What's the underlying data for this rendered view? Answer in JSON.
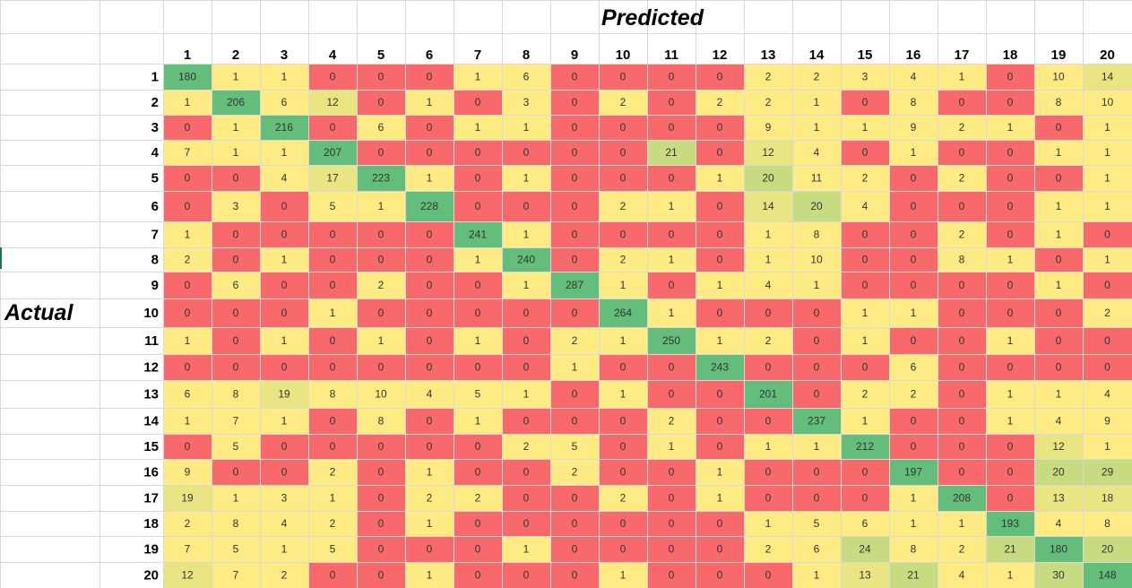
{
  "chart_data": {
    "type": "heatmap",
    "title": "",
    "xlabel": "Predicted",
    "ylabel": "Actual",
    "x_categories": [
      "1",
      "2",
      "3",
      "4",
      "5",
      "6",
      "7",
      "8",
      "9",
      "10",
      "11",
      "12",
      "13",
      "14",
      "15",
      "16",
      "17",
      "18",
      "19",
      "20"
    ],
    "y_categories": [
      "1",
      "2",
      "3",
      "4",
      "5",
      "6",
      "7",
      "8",
      "9",
      "10",
      "11",
      "12",
      "13",
      "14",
      "15",
      "16",
      "17",
      "18",
      "19",
      "20"
    ],
    "colors": {
      "zero": "#f8696b",
      "low": "#ffeb84",
      "mid": "#e9e583",
      "midhigh": "#c7dc81",
      "high": "#63be7b"
    },
    "values": [
      [
        180,
        1,
        1,
        0,
        0,
        0,
        1,
        6,
        0,
        0,
        0,
        0,
        2,
        2,
        3,
        4,
        1,
        0,
        10,
        14
      ],
      [
        1,
        206,
        6,
        12,
        0,
        1,
        0,
        3,
        0,
        2,
        0,
        2,
        2,
        1,
        0,
        8,
        0,
        0,
        8,
        10
      ],
      [
        0,
        1,
        216,
        0,
        6,
        0,
        1,
        1,
        0,
        0,
        0,
        0,
        9,
        1,
        1,
        9,
        2,
        1,
        0,
        1
      ],
      [
        7,
        1,
        1,
        207,
        0,
        0,
        0,
        0,
        0,
        0,
        21,
        0,
        12,
        4,
        0,
        1,
        0,
        0,
        1,
        1
      ],
      [
        0,
        0,
        4,
        17,
        223,
        1,
        0,
        1,
        0,
        0,
        0,
        1,
        20,
        11,
        2,
        0,
        2,
        0,
        0,
        1
      ],
      [
        0,
        3,
        0,
        5,
        1,
        228,
        0,
        0,
        0,
        2,
        1,
        0,
        14,
        20,
        4,
        0,
        0,
        0,
        1,
        1
      ],
      [
        1,
        0,
        0,
        0,
        0,
        0,
        241,
        1,
        0,
        0,
        0,
        0,
        1,
        8,
        0,
        0,
        2,
        0,
        1,
        0
      ],
      [
        2,
        0,
        1,
        0,
        0,
        0,
        1,
        240,
        0,
        2,
        1,
        0,
        1,
        10,
        0,
        0,
        8,
        1,
        0,
        1
      ],
      [
        0,
        6,
        0,
        0,
        2,
        0,
        0,
        1,
        287,
        1,
        0,
        1,
        4,
        1,
        0,
        0,
        0,
        0,
        1,
        0
      ],
      [
        0,
        0,
        0,
        1,
        0,
        0,
        0,
        0,
        0,
        264,
        1,
        0,
        0,
        0,
        1,
        1,
        0,
        0,
        0,
        2
      ],
      [
        1,
        0,
        1,
        0,
        1,
        0,
        1,
        0,
        2,
        1,
        250,
        1,
        2,
        0,
        1,
        0,
        0,
        1,
        0,
        0
      ],
      [
        0,
        0,
        0,
        0,
        0,
        0,
        0,
        0,
        1,
        0,
        0,
        243,
        0,
        0,
        0,
        6,
        0,
        0,
        0,
        0
      ],
      [
        6,
        8,
        19,
        8,
        10,
        4,
        5,
        1,
        0,
        1,
        0,
        0,
        201,
        0,
        2,
        2,
        0,
        1,
        1,
        4
      ],
      [
        1,
        7,
        1,
        0,
        8,
        0,
        1,
        0,
        0,
        0,
        2,
        0,
        0,
        237,
        1,
        0,
        0,
        1,
        4,
        9
      ],
      [
        0,
        5,
        0,
        0,
        0,
        0,
        0,
        2,
        5,
        0,
        1,
        0,
        1,
        1,
        212,
        0,
        0,
        0,
        12,
        1
      ],
      [
        9,
        0,
        0,
        2,
        0,
        1,
        0,
        0,
        2,
        0,
        0,
        1,
        0,
        0,
        0,
        197,
        0,
        0,
        20,
        29
      ],
      [
        19,
        1,
        3,
        1,
        0,
        2,
        2,
        0,
        0,
        2,
        0,
        1,
        0,
        0,
        0,
        1,
        208,
        0,
        13,
        18
      ],
      [
        2,
        8,
        4,
        2,
        0,
        1,
        0,
        0,
        0,
        0,
        0,
        0,
        1,
        5,
        6,
        1,
        1,
        193,
        4,
        8
      ],
      [
        7,
        5,
        1,
        5,
        0,
        0,
        0,
        1,
        0,
        0,
        0,
        0,
        2,
        6,
        24,
        8,
        2,
        21,
        180,
        20
      ],
      [
        12,
        7,
        2,
        0,
        0,
        1,
        0,
        0,
        0,
        1,
        0,
        0,
        0,
        1,
        13,
        21,
        4,
        1,
        30,
        148
      ]
    ]
  }
}
